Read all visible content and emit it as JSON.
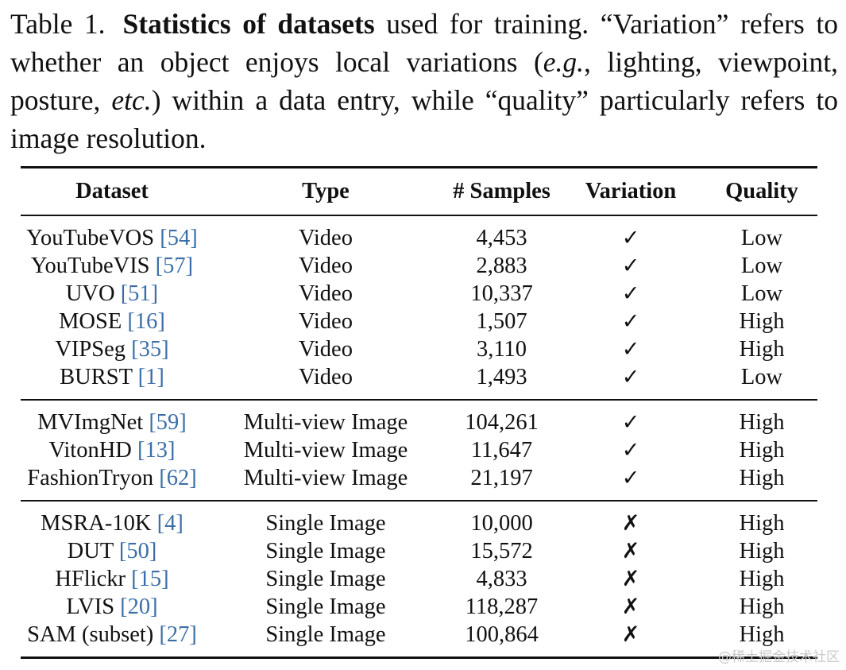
{
  "caption": {
    "label": "Table 1.",
    "title": "Statistics of datasets",
    "text1": " used for training. “Variation” refers to whether an object enjoys local variations (",
    "eg": "e.g.",
    "text2": ", lighting, viewpoint, posture, ",
    "etc": "etc.",
    "text3": ") within a data entry, while “quality” particularly refers to image resolution."
  },
  "table": {
    "headers": [
      "Dataset",
      "Type",
      "# Samples",
      "Variation",
      "Quality"
    ],
    "groups": [
      {
        "rows": [
          {
            "name": "YouTubeVOS",
            "ref": "[54]",
            "type": "Video",
            "samples": "4,453",
            "variation": "✓",
            "quality": "Low"
          },
          {
            "name": "YouTubeVIS",
            "ref": "[57]",
            "type": "Video",
            "samples": "2,883",
            "variation": "✓",
            "quality": "Low"
          },
          {
            "name": "UVO",
            "ref": "[51]",
            "type": "Video",
            "samples": "10,337",
            "variation": "✓",
            "quality": "Low"
          },
          {
            "name": "MOSE",
            "ref": "[16]",
            "type": "Video",
            "samples": "1,507",
            "variation": "✓",
            "quality": "High"
          },
          {
            "name": "VIPSeg",
            "ref": "[35]",
            "type": "Video",
            "samples": "3,110",
            "variation": "✓",
            "quality": "High"
          },
          {
            "name": "BURST",
            "ref": "[1]",
            "type": "Video",
            "samples": "1,493",
            "variation": "✓",
            "quality": "Low"
          }
        ]
      },
      {
        "rows": [
          {
            "name": "MVImgNet",
            "ref": "[59]",
            "type": "Multi-view Image",
            "samples": "104,261",
            "variation": "✓",
            "quality": "High"
          },
          {
            "name": "VitonHD",
            "ref": "[13]",
            "type": "Multi-view Image",
            "samples": "11,647",
            "variation": "✓",
            "quality": "High"
          },
          {
            "name": "FashionTryon",
            "ref": "[62]",
            "type": "Multi-view Image",
            "samples": "21,197",
            "variation": "✓",
            "quality": "High"
          }
        ]
      },
      {
        "rows": [
          {
            "name": "MSRA-10K",
            "ref": "[4]",
            "type": "Single Image",
            "samples": "10,000",
            "variation": "✗",
            "quality": "High"
          },
          {
            "name": "DUT",
            "ref": "[50]",
            "type": "Single Image",
            "samples": "15,572",
            "variation": "✗",
            "quality": "High"
          },
          {
            "name": "HFlickr",
            "ref": "[15]",
            "type": "Single Image",
            "samples": "4,833",
            "variation": "✗",
            "quality": "High"
          },
          {
            "name": "LVIS",
            "ref": "[20]",
            "type": "Single Image",
            "samples": "118,287",
            "variation": "✗",
            "quality": "High"
          },
          {
            "name": "SAM (subset)",
            "ref": "[27]",
            "type": "Single Image",
            "samples": "100,864",
            "variation": "✗",
            "quality": "High"
          }
        ]
      }
    ]
  },
  "watermark": "@稀土掘金技术社区"
}
